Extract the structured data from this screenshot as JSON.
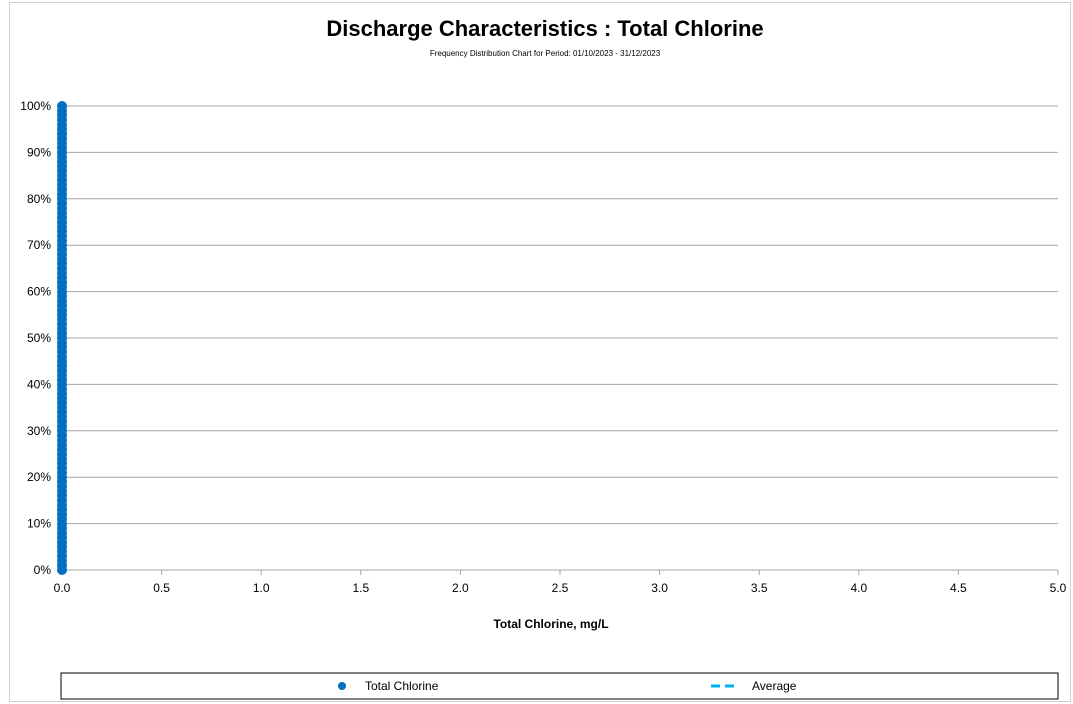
{
  "chart_data": {
    "type": "scatter",
    "title": "Discharge Characteristics : Total Chlorine",
    "subtitle": "Frequency Distribution Chart for Period: 01/10/2023 - 31/12/2023",
    "xlabel": "Total Chlorine, mg/L",
    "ylabel": "",
    "xlim": [
      0,
      5.0
    ],
    "ylim": [
      0,
      100
    ],
    "x_ticks": [
      "0.0",
      "0.5",
      "1.0",
      "1.5",
      "2.0",
      "2.5",
      "3.0",
      "3.5",
      "4.0",
      "4.5",
      "5.0"
    ],
    "y_ticks": [
      "0%",
      "10%",
      "20%",
      "30%",
      "40%",
      "50%",
      "60%",
      "70%",
      "80%",
      "90%",
      "100%"
    ],
    "grid": "horizontal",
    "legend_position": "bottom",
    "series": [
      {
        "name": "Total Chlorine",
        "marker": "circle",
        "color": "#0070C0",
        "points": [
          [
            0,
            0
          ],
          [
            0,
            1
          ],
          [
            0,
            2
          ],
          [
            0,
            3
          ],
          [
            0,
            4
          ],
          [
            0,
            5
          ],
          [
            0,
            6
          ],
          [
            0,
            7
          ],
          [
            0,
            8
          ],
          [
            0,
            9
          ],
          [
            0,
            10
          ],
          [
            0,
            11
          ],
          [
            0,
            12
          ],
          [
            0,
            13
          ],
          [
            0,
            14
          ],
          [
            0,
            15
          ],
          [
            0,
            16
          ],
          [
            0,
            17
          ],
          [
            0,
            18
          ],
          [
            0,
            19
          ],
          [
            0,
            20
          ],
          [
            0,
            21
          ],
          [
            0,
            22
          ],
          [
            0,
            23
          ],
          [
            0,
            24
          ],
          [
            0,
            25
          ],
          [
            0,
            26
          ],
          [
            0,
            27
          ],
          [
            0,
            28
          ],
          [
            0,
            29
          ],
          [
            0,
            30
          ],
          [
            0,
            31
          ],
          [
            0,
            32
          ],
          [
            0,
            33
          ],
          [
            0,
            34
          ],
          [
            0,
            35
          ],
          [
            0,
            36
          ],
          [
            0,
            37
          ],
          [
            0,
            38
          ],
          [
            0,
            39
          ],
          [
            0,
            40
          ],
          [
            0,
            41
          ],
          [
            0,
            42
          ],
          [
            0,
            43
          ],
          [
            0,
            44
          ],
          [
            0,
            45
          ],
          [
            0,
            46
          ],
          [
            0,
            47
          ],
          [
            0,
            48
          ],
          [
            0,
            49
          ],
          [
            0,
            50
          ],
          [
            0,
            51
          ],
          [
            0,
            52
          ],
          [
            0,
            53
          ],
          [
            0,
            54
          ],
          [
            0,
            55
          ],
          [
            0,
            56
          ],
          [
            0,
            57
          ],
          [
            0,
            58
          ],
          [
            0,
            59
          ],
          [
            0,
            60
          ],
          [
            0,
            61
          ],
          [
            0,
            62
          ],
          [
            0,
            63
          ],
          [
            0,
            64
          ],
          [
            0,
            65
          ],
          [
            0,
            66
          ],
          [
            0,
            67
          ],
          [
            0,
            68
          ],
          [
            0,
            69
          ],
          [
            0,
            70
          ],
          [
            0,
            71
          ],
          [
            0,
            72
          ],
          [
            0,
            73
          ],
          [
            0,
            74
          ],
          [
            0,
            75
          ],
          [
            0,
            76
          ],
          [
            0,
            77
          ],
          [
            0,
            78
          ],
          [
            0,
            79
          ],
          [
            0,
            80
          ],
          [
            0,
            81
          ],
          [
            0,
            82
          ],
          [
            0,
            83
          ],
          [
            0,
            84
          ],
          [
            0,
            85
          ],
          [
            0,
            86
          ],
          [
            0,
            87
          ],
          [
            0,
            88
          ],
          [
            0,
            89
          ],
          [
            0,
            90
          ],
          [
            0,
            91
          ],
          [
            0,
            92
          ],
          [
            0,
            93
          ],
          [
            0,
            94
          ],
          [
            0,
            95
          ],
          [
            0,
            96
          ],
          [
            0,
            97
          ],
          [
            0,
            98
          ],
          [
            0,
            99
          ],
          [
            0,
            100
          ]
        ]
      },
      {
        "name": "Average",
        "line": "dashed",
        "color": "#00B0F0",
        "points": []
      }
    ]
  },
  "colors": {
    "gridline": "#a6a6a6",
    "axis": "#a6a6a6",
    "legend_border": "#000000"
  }
}
